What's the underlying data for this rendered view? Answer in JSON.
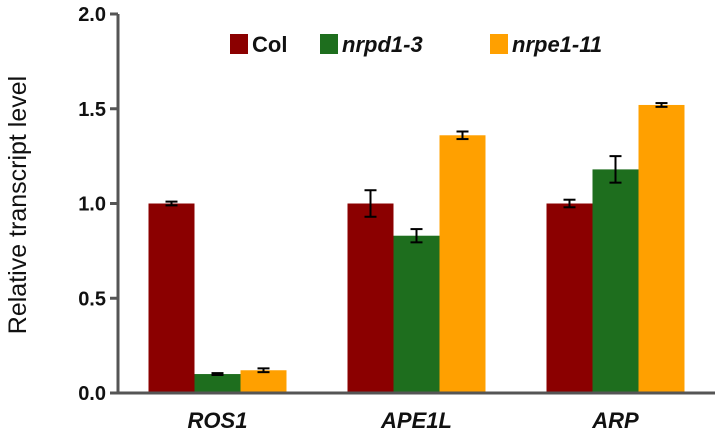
{
  "chart_data": {
    "type": "bar",
    "categories": [
      "ROS1",
      "APE1L",
      "ARP"
    ],
    "series": [
      {
        "name": "Col",
        "color": "#8b0000",
        "values": [
          1.0,
          1.0,
          1.0
        ],
        "errors": [
          0.01,
          0.07,
          0.02
        ]
      },
      {
        "name": "nrpd1-3",
        "color": "#1e6e1e",
        "values": [
          0.1,
          0.83,
          1.18
        ],
        "errors": [
          0.005,
          0.035,
          0.07
        ]
      },
      {
        "name": "nrpe1-11",
        "color": "#ffa000",
        "values": [
          0.12,
          1.36,
          1.52
        ],
        "errors": [
          0.01,
          0.02,
          0.01
        ]
      }
    ],
    "ylabel": "Relative transcript level",
    "ylim": [
      0,
      2.0
    ],
    "yticks": [
      "0.0",
      "0.5",
      "1.0",
      "1.5",
      "2.0"
    ],
    "legend_position": "top",
    "grid": false
  }
}
